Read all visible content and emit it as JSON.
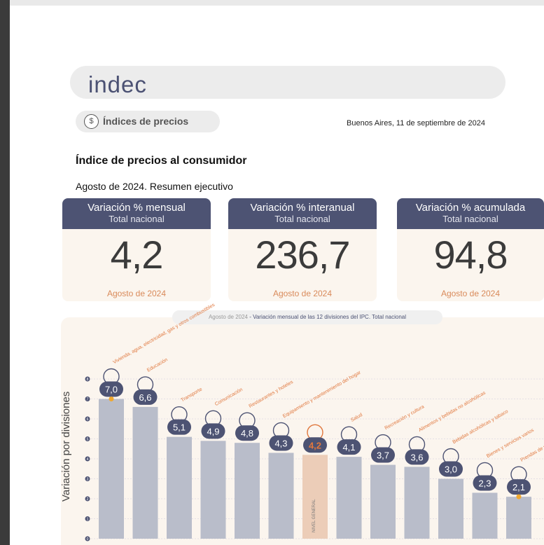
{
  "brand": {
    "logo_text": "indec"
  },
  "section": {
    "icon": "money-bag-icon",
    "label": "Índices de precios"
  },
  "dateline": "Buenos Aires, 11 de septiembre de 2024",
  "doc": {
    "title": "Índice de precios al consumidor",
    "subtitle": "Agosto de 2024. Resumen ejecutivo"
  },
  "cards": [
    {
      "title": "Variación % mensual",
      "scope": "Total nacional",
      "value": "4,2",
      "period": "Agosto de 2024"
    },
    {
      "title": "Variación % interanual",
      "scope": "Total nacional",
      "value": "236,7",
      "period": "Agosto de 2024"
    },
    {
      "title": "Variación % acumulada",
      "scope": "Total nacional",
      "value": "94,8",
      "period": "Agosto de 2024"
    }
  ],
  "chart_caption": {
    "period": "Agosto de 2024",
    "rest": " - Variación mensual de las 12 divisiones del IPC. Total nacional"
  },
  "colors": {
    "navy": "#4d5373",
    "bar": "#b9bdca",
    "highlight_bar": "#eccdb8",
    "accent": "#e0773d",
    "marker": "#f0a830"
  },
  "chart_data": {
    "type": "bar",
    "title": "Variación mensual de las 12 divisiones del IPC. Total nacional",
    "ylabel": "Variación por divisiones",
    "ylim": [
      0,
      8
    ],
    "yticks": [
      0,
      1,
      2,
      3,
      4,
      5,
      6,
      7,
      8
    ],
    "grid": true,
    "categories": [
      "Vivienda, agua, electricidad, gas y otros combustibles",
      "Educación",
      "Transporte",
      "Comunicación",
      "Restaurantes y hoteles",
      "Equipamiento y mantenimiento del hogar",
      "NIVEL GENERAL",
      "Salud",
      "Recreación y cultura",
      "Alimentos y bebidas no alcohólicas",
      "Bebidas alcohólicas y tabaco",
      "Bienes y servicios varios",
      "Prendas de vestir y calzado"
    ],
    "values": [
      7.0,
      6.6,
      5.1,
      4.9,
      4.8,
      4.3,
      4.2,
      4.1,
      3.7,
      3.6,
      3.0,
      2.3,
      2.1
    ],
    "value_labels": [
      "7,0",
      "6,6",
      "5,1",
      "4,9",
      "4,8",
      "4,3",
      "4,2",
      "4,1",
      "3,7",
      "3,6",
      "3,0",
      "2,3",
      "2,1"
    ],
    "icons": [
      "house-utilities-icon",
      "book-icon",
      "bus-icon",
      "phone-icon",
      "cutlery-icon",
      "iron-icon",
      "shopping-bag-icon",
      "first-aid-icon",
      "umbrella-icon",
      "grocery-icon",
      "wine-icon",
      "scissors-icon",
      "tshirt-icon"
    ],
    "highlight_index": 6,
    "markers": [
      0,
      12
    ]
  }
}
